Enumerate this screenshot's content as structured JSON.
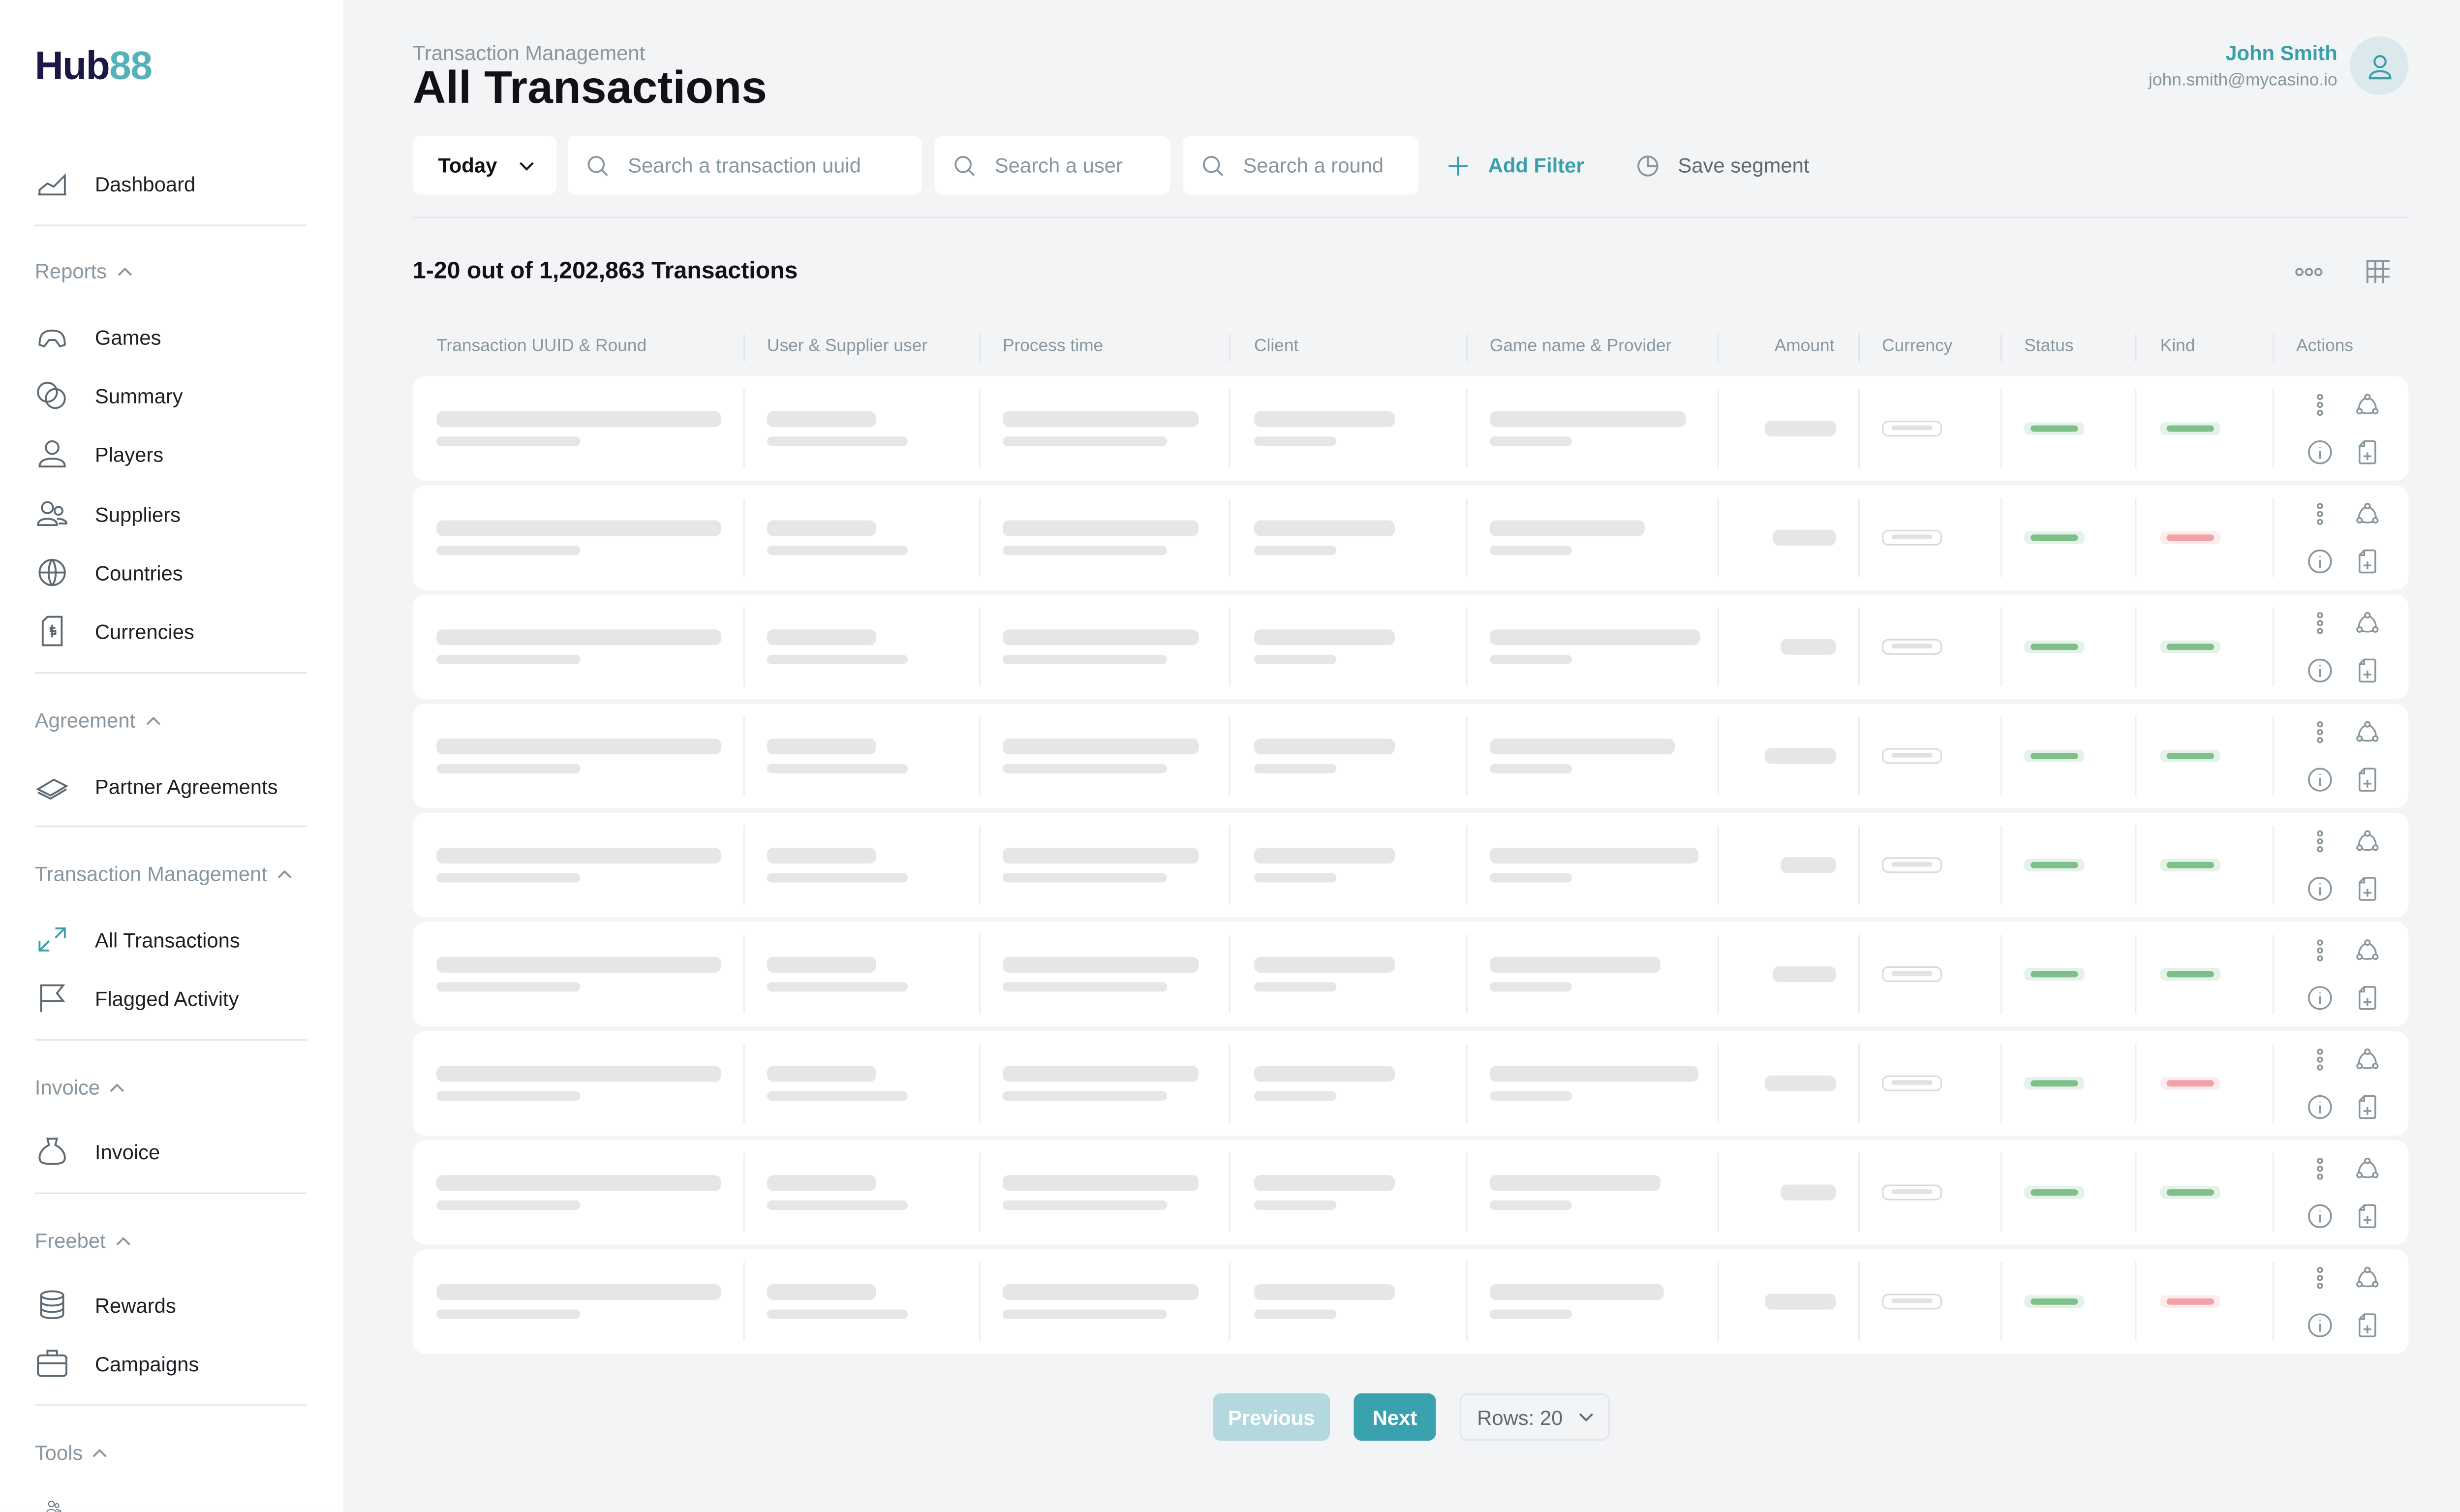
{
  "brand": {
    "logo_part1": "Hub",
    "logo_part2": "88",
    "accent": "#3a9faa"
  },
  "sidebar": {
    "top_item": {
      "label": "Dashboard",
      "icon": "chart-icon"
    },
    "sections": [
      {
        "title": "Reports",
        "items": [
          {
            "label": "Games",
            "icon": "gamepad-icon"
          },
          {
            "label": "Summary",
            "icon": "coins-icon"
          },
          {
            "label": "Players",
            "icon": "user-icon"
          },
          {
            "label": "Suppliers",
            "icon": "users-icon"
          },
          {
            "label": "Countries",
            "icon": "globe-icon"
          },
          {
            "label": "Currencies",
            "icon": "currency-icon"
          }
        ]
      },
      {
        "title": "Agreement",
        "items": [
          {
            "label": "Partner Agreements",
            "icon": "money-stack-icon"
          }
        ]
      },
      {
        "title": "Transaction Management",
        "items": [
          {
            "label": "All Transactions",
            "icon": "expand-arrows-icon"
          },
          {
            "label": "Flagged Activity",
            "icon": "flag-icon"
          }
        ]
      },
      {
        "title": "Invoice",
        "items": [
          {
            "label": "Invoice",
            "icon": "money-bag-icon"
          }
        ]
      },
      {
        "title": "Freebet",
        "items": [
          {
            "label": "Rewards",
            "icon": "coin-stack-icon"
          },
          {
            "label": "Campaigns",
            "icon": "briefcase-icon"
          }
        ]
      },
      {
        "title": "Tools",
        "items": []
      }
    ]
  },
  "header": {
    "breadcrumb": "Transaction Management",
    "title": "All Transactions",
    "user_name": "John Smith",
    "user_email": "john.smith@mycasino.io"
  },
  "filters": {
    "date": "Today",
    "search_uuid_placeholder": "Search a transaction uuid",
    "search_user_placeholder": "Search a user",
    "search_round_placeholder": "Search a round",
    "add_filter": "Add Filter",
    "save_segment": "Save segment"
  },
  "table": {
    "count_text": "1-20 out of 1,202,863 Transactions",
    "columns": [
      "Transaction UUID & Round",
      "User & Supplier user",
      "Process time",
      "Client",
      "Game name & Provider",
      "Amount",
      "Currency",
      "Status",
      "Kind",
      "Actions"
    ],
    "rows_kind": [
      "success",
      "failed",
      "success",
      "success",
      "success",
      "success",
      "failed",
      "success",
      "failed"
    ],
    "status_colors": {
      "success": "#7fbf8a",
      "failed": "#f3a0a6"
    }
  },
  "pagination": {
    "previous": "Previous",
    "next": "Next",
    "rows": "Rows: 20"
  }
}
